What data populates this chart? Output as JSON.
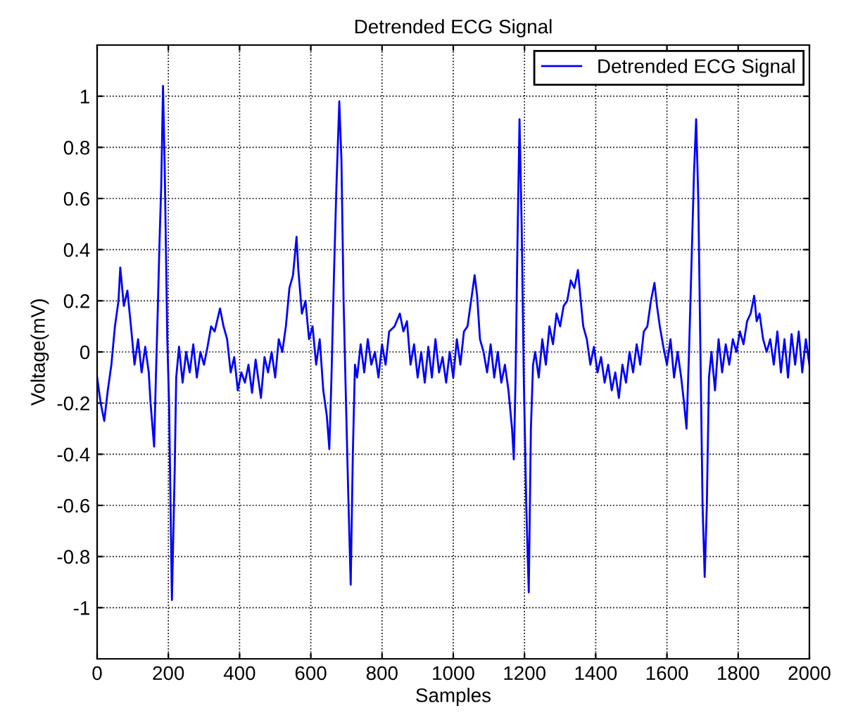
{
  "chart_data": {
    "type": "line",
    "title": "Detrended ECG Signal",
    "xlabel": "Samples",
    "ylabel": "Voltage(mV)",
    "xlim": [
      0,
      2000
    ],
    "ylim": [
      -1.2,
      1.2
    ],
    "xticks": [
      0,
      200,
      400,
      600,
      800,
      1000,
      1200,
      1400,
      1600,
      1800,
      2000
    ],
    "yticks": [
      -1,
      -0.8,
      -0.6,
      -0.4,
      -0.2,
      0,
      0.2,
      0.4,
      0.6,
      0.8,
      1
    ],
    "grid": true,
    "legend": "top right",
    "line_style": "solid",
    "marker": "none",
    "series": [
      {
        "name": "Detrended ECG Signal",
        "color": "#0000ff",
        "x": [
          0,
          10,
          20,
          30,
          40,
          50,
          60,
          65,
          75,
          85,
          95,
          105,
          115,
          125,
          135,
          145,
          150,
          160,
          165,
          170,
          175,
          180,
          185,
          190,
          197,
          202,
          210,
          218,
          222,
          230,
          240,
          250,
          260,
          270,
          280,
          290,
          300,
          310,
          320,
          330,
          345,
          355,
          365,
          375,
          385,
          395,
          405,
          415,
          425,
          435,
          445,
          460,
          470,
          480,
          490,
          500,
          510,
          520,
          530,
          540,
          550,
          560,
          565,
          575,
          585,
          595,
          605,
          615,
          625,
          635,
          645,
          652,
          658,
          665,
          672,
          680,
          686,
          692,
          698,
          705,
          712,
          718,
          724,
          730,
          740,
          750,
          760,
          770,
          780,
          790,
          800,
          810,
          820,
          835,
          850,
          860,
          870,
          880,
          890,
          900,
          910,
          920,
          930,
          940,
          950,
          960,
          970,
          980,
          990,
          1000,
          1010,
          1020,
          1030,
          1040,
          1050,
          1060,
          1067,
          1075,
          1085,
          1095,
          1105,
          1115,
          1125,
          1135,
          1145,
          1155,
          1165,
          1170,
          1175,
          1180,
          1186,
          1192,
          1198,
          1205,
          1212,
          1218,
          1224,
          1230,
          1240,
          1250,
          1260,
          1270,
          1280,
          1290,
          1300,
          1310,
          1320,
          1330,
          1340,
          1350,
          1358,
          1365,
          1375,
          1385,
          1395,
          1405,
          1415,
          1425,
          1435,
          1445,
          1455,
          1465,
          1475,
          1485,
          1495,
          1505,
          1515,
          1525,
          1535,
          1545,
          1555,
          1565,
          1572,
          1580,
          1590,
          1600,
          1610,
          1620,
          1630,
          1640,
          1648,
          1655,
          1662,
          1670,
          1676,
          1682,
          1688,
          1694,
          1700,
          1706,
          1712,
          1718,
          1725,
          1735,
          1745,
          1755,
          1765,
          1775,
          1785,
          1795,
          1805,
          1815,
          1825,
          1835,
          1845,
          1852,
          1860,
          1870,
          1880,
          1890,
          1900,
          1910,
          1920,
          1930,
          1940,
          1950,
          1960,
          1970,
          1980,
          1990,
          2000
        ],
        "values": [
          -0.1,
          -0.2,
          -0.27,
          -0.15,
          -0.05,
          0.1,
          0.2,
          0.33,
          0.18,
          0.24,
          0.1,
          -0.05,
          0.05,
          -0.08,
          0.02,
          -0.08,
          -0.2,
          -0.37,
          -0.1,
          0.15,
          0.42,
          0.65,
          1.04,
          0.7,
          0.05,
          -0.2,
          -0.97,
          -0.45,
          -0.1,
          0.02,
          -0.12,
          0.0,
          -0.08,
          0.03,
          -0.1,
          0.0,
          -0.05,
          0.02,
          0.1,
          0.08,
          0.17,
          0.1,
          0.05,
          -0.08,
          -0.02,
          -0.15,
          -0.08,
          -0.12,
          -0.05,
          -0.16,
          -0.03,
          -0.18,
          -0.02,
          -0.08,
          0.0,
          -0.1,
          0.05,
          0.0,
          0.1,
          0.25,
          0.3,
          0.45,
          0.32,
          0.15,
          0.2,
          0.05,
          0.1,
          -0.05,
          0.05,
          -0.15,
          -0.25,
          -0.38,
          -0.1,
          0.3,
          0.65,
          0.98,
          0.75,
          0.2,
          -0.15,
          -0.55,
          -0.91,
          -0.4,
          -0.05,
          -0.1,
          0.03,
          -0.08,
          0.05,
          -0.05,
          0.0,
          -0.1,
          0.03,
          -0.05,
          0.08,
          0.1,
          0.15,
          0.08,
          0.12,
          -0.05,
          0.03,
          -0.1,
          0.0,
          -0.12,
          0.02,
          -0.1,
          0.05,
          -0.08,
          -0.02,
          -0.12,
          0.0,
          -0.1,
          0.05,
          -0.05,
          0.08,
          0.1,
          0.2,
          0.3,
          0.22,
          0.05,
          0.0,
          -0.08,
          0.03,
          -0.1,
          0.0,
          -0.12,
          -0.05,
          -0.15,
          -0.3,
          -0.42,
          -0.1,
          0.4,
          0.91,
          0.5,
          -0.1,
          -0.6,
          -0.94,
          -0.3,
          -0.05,
          0.0,
          -0.1,
          0.05,
          -0.05,
          0.1,
          0.03,
          0.15,
          0.1,
          0.18,
          0.2,
          0.28,
          0.25,
          0.32,
          0.2,
          0.1,
          0.05,
          -0.05,
          0.02,
          -0.08,
          -0.02,
          -0.12,
          -0.05,
          -0.15,
          -0.08,
          -0.18,
          -0.05,
          -0.12,
          0.0,
          -0.08,
          0.03,
          -0.05,
          0.08,
          0.1,
          0.2,
          0.27,
          0.18,
          0.1,
          0.02,
          -0.05,
          0.05,
          -0.1,
          0.0,
          -0.1,
          -0.2,
          -0.3,
          0.0,
          0.4,
          0.7,
          0.91,
          0.6,
          0.0,
          -0.6,
          -0.88,
          -0.6,
          -0.1,
          0.0,
          -0.15,
          0.05,
          -0.08,
          0.03,
          -0.05,
          0.05,
          0.0,
          0.08,
          0.03,
          0.12,
          0.15,
          0.22,
          0.12,
          0.15,
          0.05,
          0.0,
          0.05,
          -0.05,
          0.08,
          -0.08,
          0.05,
          -0.1,
          0.07,
          -0.05,
          0.08,
          -0.08,
          0.05,
          -0.05
        ]
      }
    ]
  }
}
